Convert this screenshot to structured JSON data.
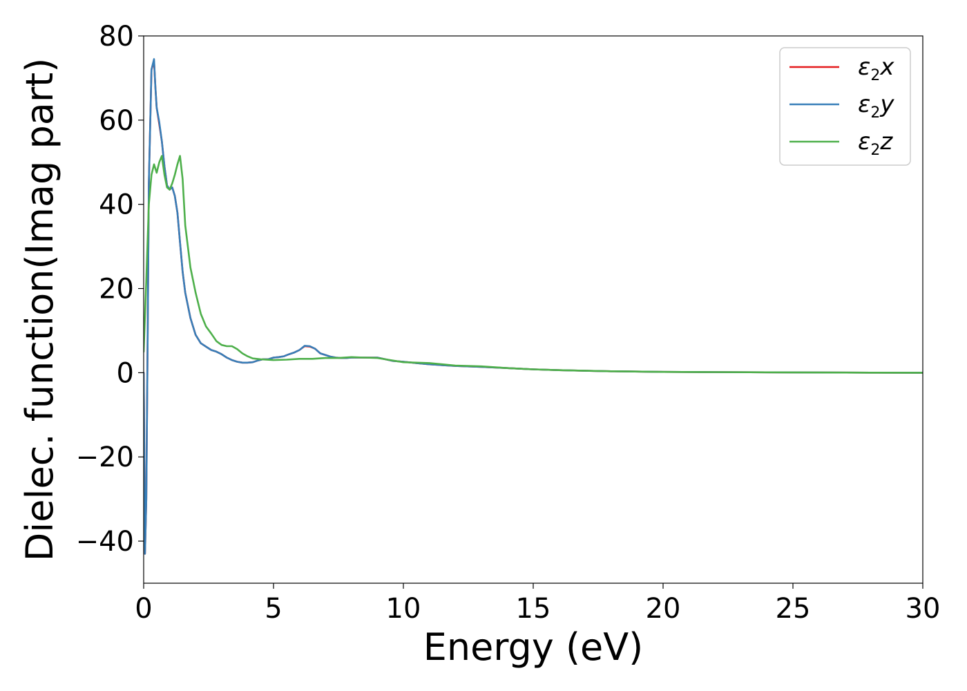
{
  "chart_data": {
    "type": "line",
    "xlabel": "Energy (eV)",
    "ylabel": "Dielec. function(Imag part)",
    "xlim": [
      0,
      30
    ],
    "ylim": [
      -50,
      80
    ],
    "xticks": [
      0,
      5,
      10,
      15,
      20,
      25,
      30
    ],
    "yticks": [
      -40,
      -20,
      0,
      20,
      40,
      60,
      80
    ],
    "xtick_labels": [
      "0",
      "5",
      "10",
      "15",
      "20",
      "25",
      "30"
    ],
    "ytick_labels": [
      "−40",
      "−20",
      "0",
      "20",
      "40",
      "60",
      "80"
    ],
    "grid": false,
    "legend_position": "top-right",
    "series": [
      {
        "name": "ε",
        "name_sub": "2",
        "name_suffix": "x",
        "color": "#e41a1c",
        "x": [
          0,
          0.05,
          0.1,
          0.15,
          0.2,
          0.3,
          0.4,
          0.45,
          0.5,
          0.6,
          0.7,
          0.8,
          0.9,
          1.0,
          1.1,
          1.2,
          1.3,
          1.4,
          1.5,
          1.6,
          1.8,
          2.0,
          2.2,
          2.4,
          2.6,
          2.8,
          3.0,
          3.2,
          3.4,
          3.6,
          3.8,
          4.0,
          4.2,
          4.4,
          4.6,
          4.8,
          5.0,
          5.2,
          5.4,
          5.6,
          5.8,
          6.0,
          6.2,
          6.4,
          6.6,
          6.8,
          7.0,
          7.2,
          7.4,
          7.6,
          7.8,
          8.0,
          8.5,
          9.0,
          9.3,
          9.6,
          10.0,
          10.5,
          11.0,
          11.5,
          12.0,
          13.0,
          14.0,
          15.0,
          16.0,
          17.0,
          18.0,
          20.0,
          22.0,
          24.0,
          26.0,
          28.0,
          30.0
        ],
        "y": [
          0,
          -43,
          -30,
          5,
          45,
          72,
          74,
          68,
          63,
          59,
          55,
          49,
          44.5,
          43.5,
          44,
          42,
          38,
          31,
          24,
          19,
          13,
          9,
          7,
          6.2,
          5.4,
          5,
          4.4,
          3.6,
          3,
          2.6,
          2.4,
          2.4,
          2.5,
          2.9,
          3.2,
          3.2,
          3.6,
          3.7,
          3.9,
          4.4,
          4.8,
          5.4,
          6.3,
          6.2,
          5.7,
          4.6,
          4.2,
          3.8,
          3.6,
          3.5,
          3.5,
          3.6,
          3.6,
          3.6,
          3.2,
          2.8,
          2.6,
          2.3,
          2.0,
          1.8,
          1.6,
          1.4,
          1.1,
          0.8,
          0.6,
          0.45,
          0.35,
          0.2,
          0.15,
          0.1,
          0.05,
          0.02,
          0
        ]
      },
      {
        "name": "ε",
        "name_sub": "2",
        "name_suffix": "y",
        "color": "#377eb8",
        "x": [
          0,
          0.05,
          0.1,
          0.15,
          0.2,
          0.3,
          0.4,
          0.45,
          0.5,
          0.6,
          0.7,
          0.8,
          0.9,
          1.0,
          1.1,
          1.2,
          1.3,
          1.4,
          1.5,
          1.6,
          1.8,
          2.0,
          2.2,
          2.4,
          2.6,
          2.8,
          3.0,
          3.2,
          3.4,
          3.6,
          3.8,
          4.0,
          4.2,
          4.4,
          4.6,
          4.8,
          5.0,
          5.2,
          5.4,
          5.6,
          5.8,
          6.0,
          6.2,
          6.4,
          6.6,
          6.8,
          7.0,
          7.2,
          7.4,
          7.6,
          7.8,
          8.0,
          8.5,
          9.0,
          9.3,
          9.6,
          10.0,
          10.5,
          11.0,
          11.5,
          12.0,
          13.0,
          14.0,
          15.0,
          16.0,
          17.0,
          18.0,
          20.0,
          22.0,
          24.0,
          26.0,
          28.0,
          30.0
        ],
        "y": [
          0,
          -43,
          -30,
          5,
          45,
          72,
          74.5,
          68,
          63,
          59.5,
          55,
          49,
          44.5,
          43.5,
          44,
          42,
          38,
          31,
          24,
          19,
          13,
          9,
          7,
          6.2,
          5.4,
          5,
          4.4,
          3.6,
          3,
          2.6,
          2.4,
          2.4,
          2.5,
          2.9,
          3.2,
          3.2,
          3.6,
          3.7,
          3.9,
          4.4,
          4.8,
          5.4,
          6.4,
          6.3,
          5.7,
          4.6,
          4.2,
          3.8,
          3.6,
          3.5,
          3.5,
          3.6,
          3.6,
          3.6,
          3.2,
          2.8,
          2.6,
          2.3,
          2.0,
          1.8,
          1.6,
          1.4,
          1.1,
          0.8,
          0.6,
          0.45,
          0.35,
          0.2,
          0.15,
          0.1,
          0.05,
          0.02,
          0
        ]
      },
      {
        "name": "ε",
        "name_sub": "2",
        "name_suffix": "z",
        "color": "#4daf4a",
        "x": [
          0,
          0.1,
          0.2,
          0.3,
          0.4,
          0.5,
          0.6,
          0.7,
          0.8,
          0.9,
          1.0,
          1.1,
          1.2,
          1.3,
          1.4,
          1.5,
          1.6,
          1.8,
          2.0,
          2.2,
          2.4,
          2.6,
          2.8,
          3.0,
          3.2,
          3.4,
          3.6,
          3.8,
          4.0,
          4.2,
          4.5,
          5.0,
          5.5,
          6.0,
          6.5,
          7.0,
          7.5,
          8.0,
          8.5,
          9.0,
          9.5,
          10.0,
          10.5,
          11.0,
          12.0,
          13.0,
          14.0,
          15.0,
          16.0,
          18.0,
          20.0,
          22.0,
          24.0,
          26.0,
          28.0,
          30.0
        ],
        "y": [
          5,
          22,
          40,
          47,
          49.5,
          47.5,
          50,
          51.5,
          47,
          44,
          43.5,
          45,
          47,
          49.5,
          51.5,
          46,
          35,
          25,
          19,
          14,
          11,
          9.3,
          7.5,
          6.6,
          6.3,
          6.3,
          5.6,
          4.6,
          3.9,
          3.4,
          3.2,
          3.0,
          3.1,
          3.3,
          3.3,
          3.5,
          3.5,
          3.7,
          3.6,
          3.5,
          3.0,
          2.5,
          2.4,
          2.3,
          1.7,
          1.5,
          1.1,
          0.8,
          0.6,
          0.35,
          0.2,
          0.15,
          0.1,
          0.05,
          0.02,
          0
        ]
      }
    ]
  }
}
